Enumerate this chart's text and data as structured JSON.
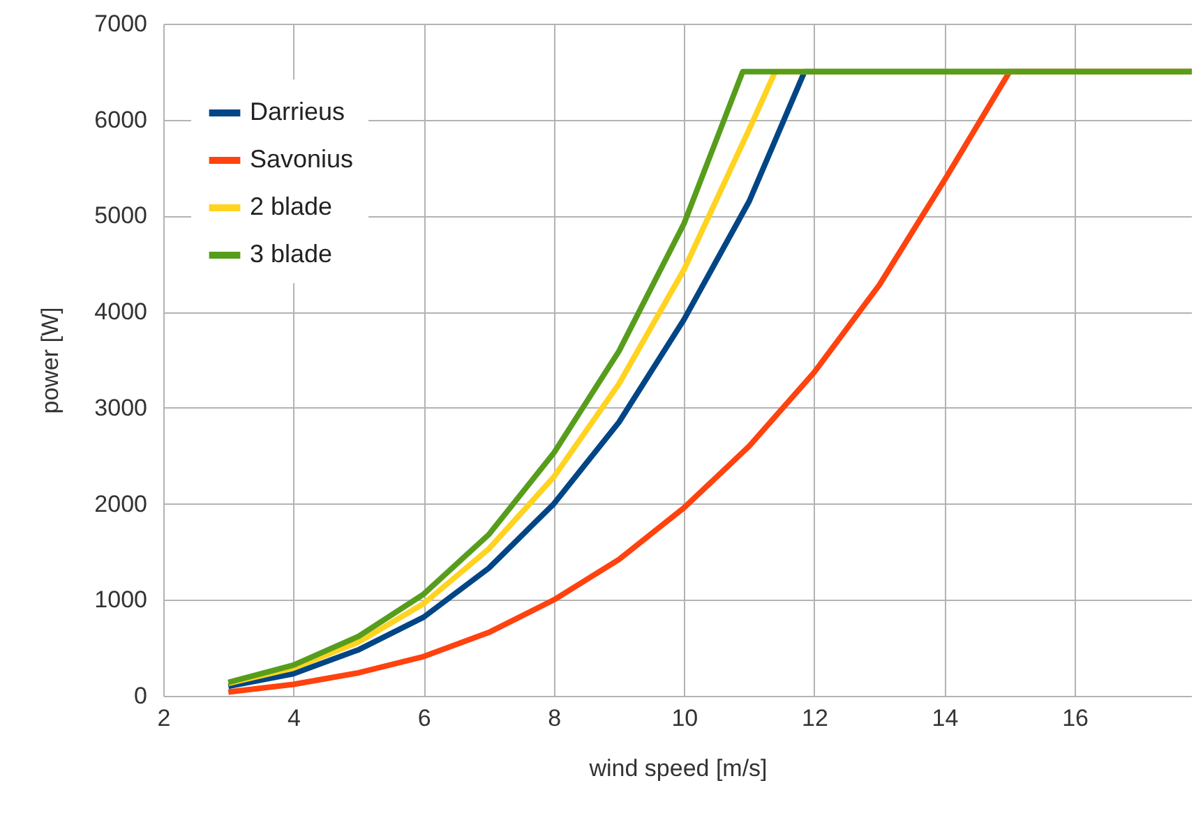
{
  "chart_data": {
    "type": "line",
    "xlabel": "wind speed [m/s]",
    "ylabel": "power [W]",
    "xlim": [
      2,
      17.8
    ],
    "ylim": [
      0,
      7000
    ],
    "xticks": [
      2,
      4,
      6,
      8,
      10,
      12,
      14,
      16
    ],
    "yticks": [
      0,
      1000,
      2000,
      3000,
      4000,
      5000,
      6000,
      7000
    ],
    "grid": true,
    "legend": "top left",
    "marker": "none",
    "line_style": "solid",
    "series": [
      {
        "name": "Darrieus",
        "color": "#004586",
        "x": [
          3,
          4,
          5,
          6,
          7,
          8,
          9,
          10,
          11,
          11.85,
          17.8
        ],
        "values": [
          100,
          230,
          480,
          820,
          1330,
          2000,
          2850,
          3920,
          5150,
          6500,
          6500
        ]
      },
      {
        "name": "Savonius",
        "color": "#ff420e",
        "x": [
          3,
          4,
          5,
          6,
          7,
          8,
          9,
          10,
          11,
          12,
          13,
          14,
          15,
          17.8
        ],
        "values": [
          40,
          120,
          240,
          410,
          660,
          1000,
          1420,
          1960,
          2600,
          3370,
          4280,
          5370,
          6500,
          6500
        ]
      },
      {
        "name": "2 blade",
        "color": "#ffd320",
        "x": [
          3,
          4,
          5,
          6,
          7,
          8,
          9,
          10,
          11,
          11.4,
          17.8
        ],
        "values": [
          130,
          290,
          560,
          960,
          1530,
          2280,
          3250,
          4440,
          5900,
          6500,
          6500
        ]
      },
      {
        "name": "3 blade",
        "color": "#579d1c",
        "x": [
          3,
          4,
          5,
          6,
          7,
          8,
          9,
          10,
          10.9,
          17.8
        ],
        "values": [
          140,
          320,
          620,
          1060,
          1680,
          2530,
          3590,
          4920,
          6500,
          6500
        ]
      }
    ]
  }
}
